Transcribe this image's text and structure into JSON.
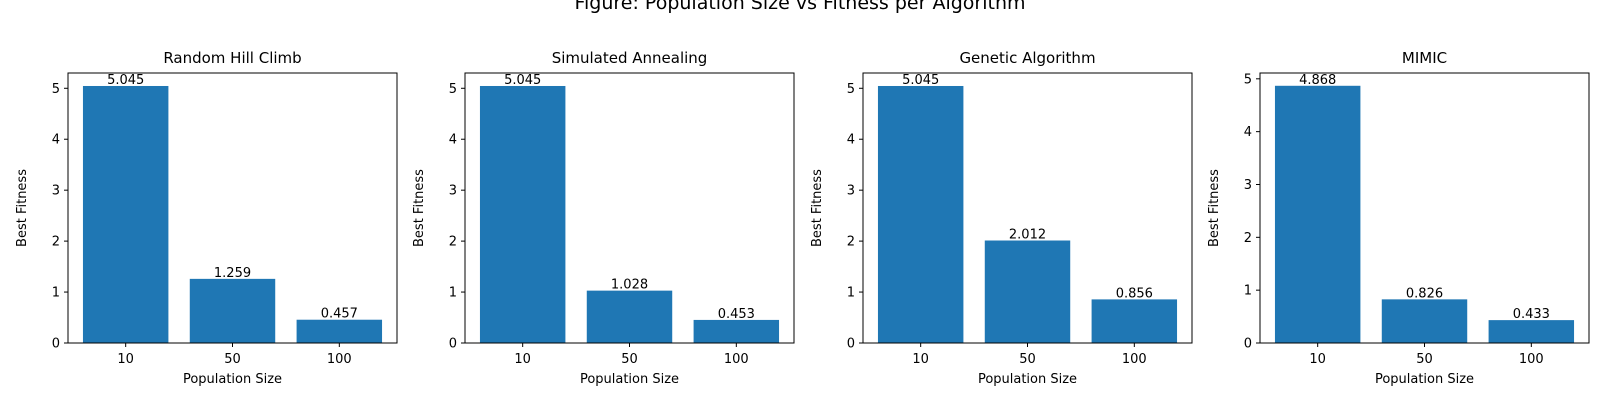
{
  "figure": {
    "suptitle": "Figure: Population Size vs Fitness per Algorithm"
  },
  "style": {
    "bar_color": "#1f77b4",
    "axis_color": "#000000",
    "background": "#ffffff"
  },
  "chart_data": [
    {
      "type": "bar",
      "title": "Random Hill Climb",
      "xlabel": "Population Size",
      "ylabel": "Best Fitness",
      "categories": [
        "10",
        "50",
        "100"
      ],
      "values": [
        5.045,
        1.259,
        0.457
      ],
      "value_labels": [
        "5.045",
        "1.259",
        "0.457"
      ],
      "ylim": [
        0,
        5.3
      ],
      "yticks": [
        0,
        1,
        2,
        3,
        4,
        5
      ],
      "grid": false
    },
    {
      "type": "bar",
      "title": "Simulated Annealing",
      "xlabel": "Population Size",
      "ylabel": "Best Fitness",
      "categories": [
        "10",
        "50",
        "100"
      ],
      "values": [
        5.045,
        1.028,
        0.453
      ],
      "value_labels": [
        "5.045",
        "1.028",
        "0.453"
      ],
      "ylim": [
        0,
        5.3
      ],
      "yticks": [
        0,
        1,
        2,
        3,
        4,
        5
      ],
      "grid": false
    },
    {
      "type": "bar",
      "title": "Genetic Algorithm",
      "xlabel": "Population Size",
      "ylabel": "Best Fitness",
      "categories": [
        "10",
        "50",
        "100"
      ],
      "values": [
        5.045,
        2.012,
        0.856
      ],
      "value_labels": [
        "5.045",
        "2.012",
        "0.856"
      ],
      "ylim": [
        0,
        5.3
      ],
      "yticks": [
        0,
        1,
        2,
        3,
        4,
        5
      ],
      "grid": false
    },
    {
      "type": "bar",
      "title": "MIMIC",
      "xlabel": "Population Size",
      "ylabel": "Best Fitness",
      "categories": [
        "10",
        "50",
        "100"
      ],
      "values": [
        4.868,
        0.826,
        0.433
      ],
      "value_labels": [
        "4.868",
        "0.826",
        "0.433"
      ],
      "ylim": [
        0,
        5.11
      ],
      "yticks": [
        0,
        1,
        2,
        3,
        4,
        5
      ],
      "grid": false
    }
  ]
}
